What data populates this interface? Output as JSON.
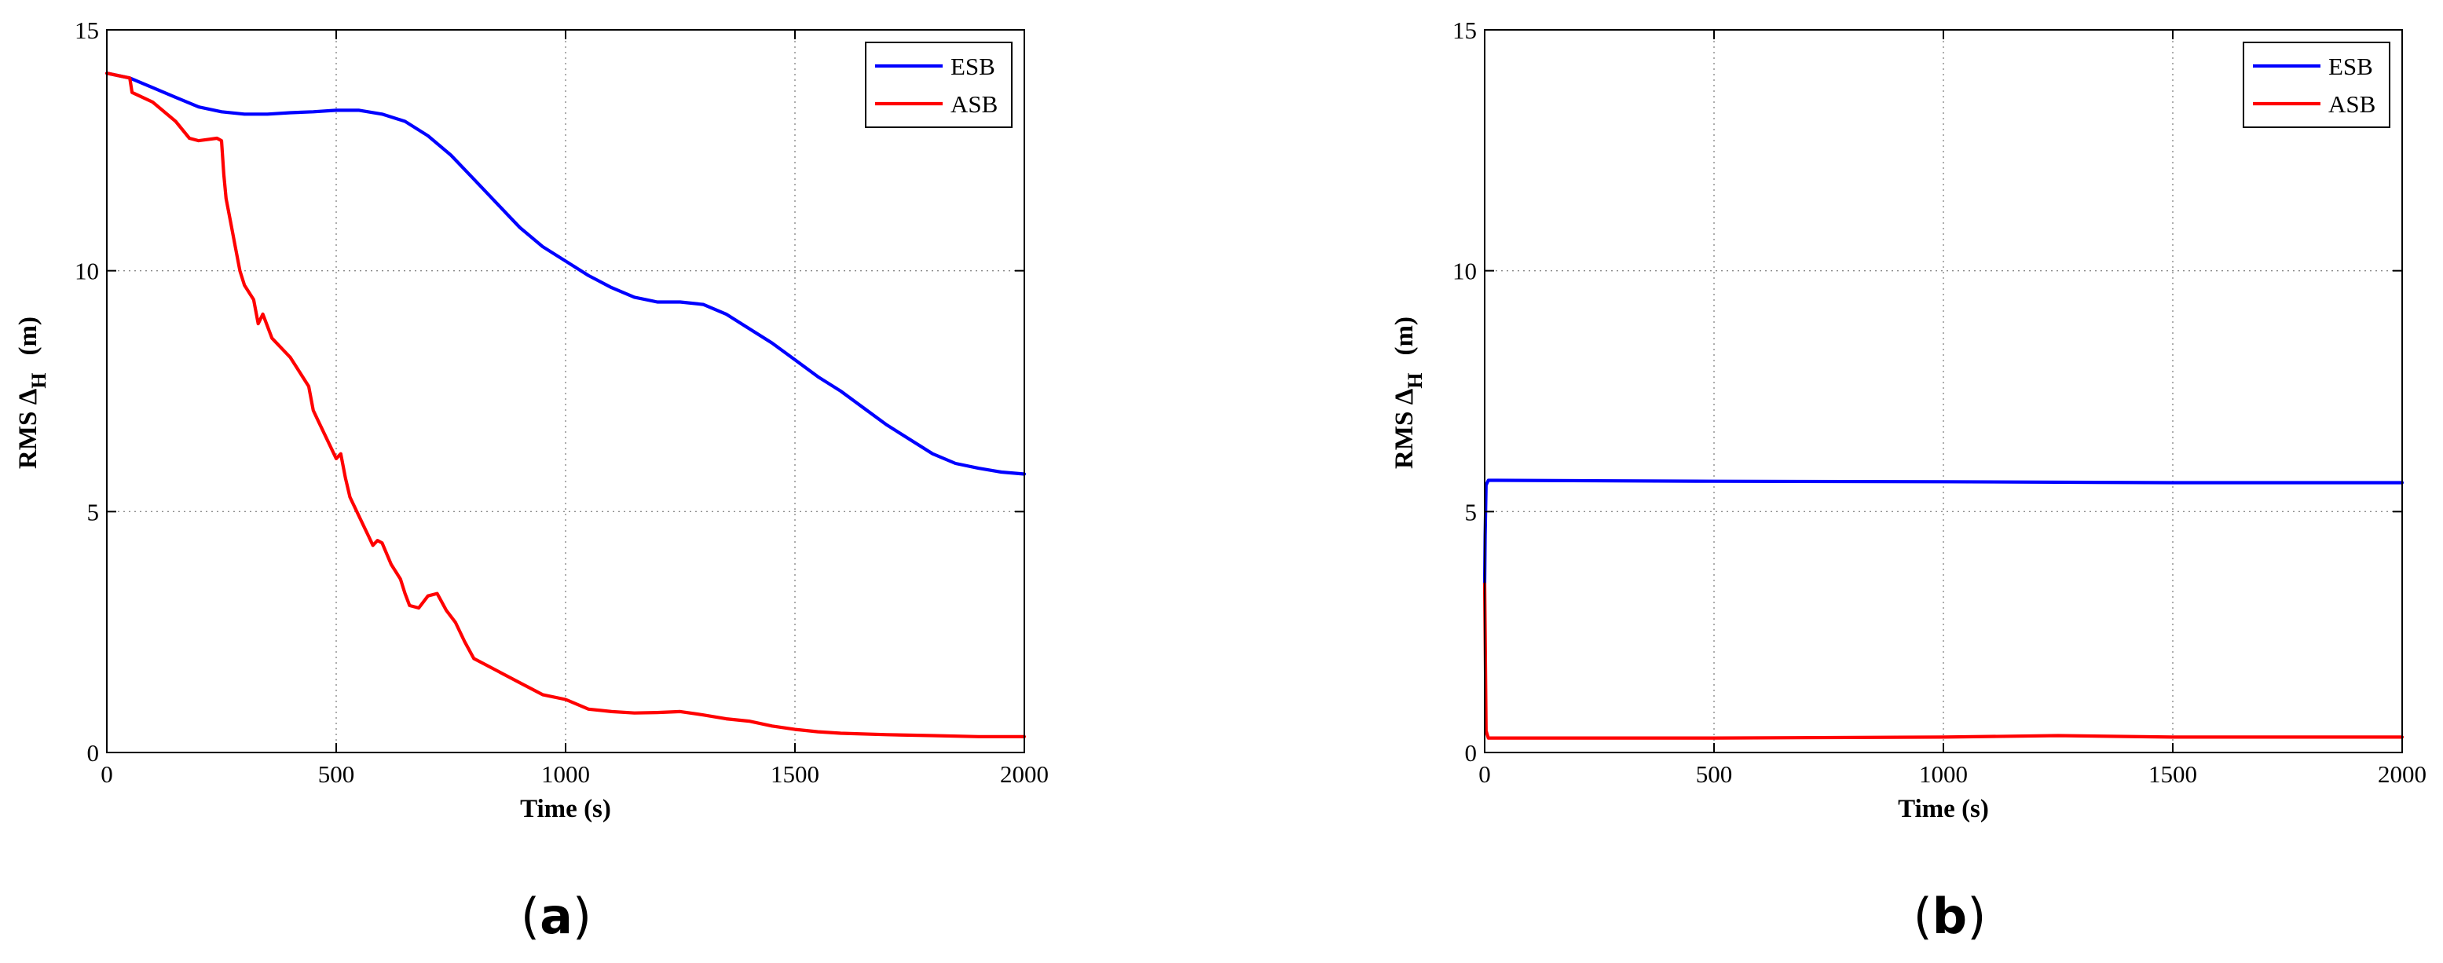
{
  "chart_data": [
    {
      "type": "line",
      "panel_label": "a",
      "xlabel": "Time  (s)",
      "ylabel": "RMS Δ",
      "ylabel_subscript": "H",
      "ylabel_unit": "(m)",
      "xlim": [
        0,
        2000
      ],
      "ylim": [
        0,
        15
      ],
      "xticks": [
        0,
        500,
        1000,
        1500,
        2000
      ],
      "yticks": [
        0,
        5,
        10,
        15
      ],
      "grid": true,
      "legend_position": "top-right",
      "series": [
        {
          "name": "ESB",
          "color": "#0000ff",
          "x": [
            0,
            50,
            100,
            150,
            200,
            250,
            300,
            350,
            400,
            450,
            500,
            550,
            600,
            650,
            700,
            750,
            800,
            850,
            900,
            950,
            1000,
            1050,
            1100,
            1150,
            1200,
            1250,
            1300,
            1350,
            1400,
            1450,
            1500,
            1550,
            1600,
            1650,
            1700,
            1750,
            1800,
            1850,
            1900,
            1950,
            2000
          ],
          "values": [
            14.1,
            14.0,
            13.8,
            13.6,
            13.4,
            13.3,
            13.25,
            13.25,
            13.28,
            13.3,
            13.33,
            13.33,
            13.25,
            13.1,
            12.8,
            12.4,
            11.9,
            11.4,
            10.9,
            10.5,
            10.2,
            9.9,
            9.65,
            9.45,
            9.35,
            9.35,
            9.3,
            9.1,
            8.8,
            8.5,
            8.15,
            7.8,
            7.5,
            7.15,
            6.8,
            6.5,
            6.2,
            6.0,
            5.9,
            5.82,
            5.78
          ]
        },
        {
          "name": "ASB",
          "color": "#ff0000",
          "x": [
            0,
            50,
            55,
            100,
            150,
            180,
            200,
            240,
            250,
            255,
            260,
            270,
            280,
            290,
            300,
            320,
            330,
            340,
            360,
            380,
            400,
            420,
            440,
            450,
            460,
            480,
            500,
            510,
            520,
            530,
            550,
            560,
            570,
            580,
            590,
            600,
            620,
            640,
            650,
            660,
            680,
            700,
            720,
            740,
            760,
            780,
            800,
            850,
            900,
            950,
            1000,
            1050,
            1100,
            1150,
            1200,
            1250,
            1300,
            1350,
            1400,
            1450,
            1500,
            1550,
            1600,
            1700,
            1800,
            1900,
            2000
          ],
          "values": [
            14.1,
            14.0,
            13.7,
            13.5,
            13.1,
            12.75,
            12.7,
            12.75,
            12.7,
            12.0,
            11.5,
            11.0,
            10.5,
            10.0,
            9.7,
            9.4,
            8.9,
            9.1,
            8.6,
            8.4,
            8.2,
            7.9,
            7.6,
            7.1,
            6.9,
            6.5,
            6.1,
            6.2,
            5.7,
            5.3,
            4.9,
            4.7,
            4.5,
            4.3,
            4.4,
            4.35,
            3.9,
            3.6,
            3.3,
            3.05,
            3.0,
            3.25,
            3.3,
            2.95,
            2.7,
            2.3,
            1.95,
            1.7,
            1.45,
            1.2,
            1.1,
            0.9,
            0.85,
            0.82,
            0.83,
            0.85,
            0.78,
            0.7,
            0.65,
            0.55,
            0.48,
            0.43,
            0.4,
            0.37,
            0.35,
            0.33,
            0.33
          ]
        }
      ]
    },
    {
      "type": "line",
      "panel_label": "b",
      "xlabel": "Time  (s)",
      "ylabel": "RMS Δ",
      "ylabel_subscript": "H",
      "ylabel_unit": "(m)",
      "xlim": [
        0,
        2000
      ],
      "ylim": [
        0,
        15
      ],
      "xticks": [
        0,
        500,
        1000,
        1500,
        2000
      ],
      "yticks": [
        0,
        5,
        10,
        15
      ],
      "grid": true,
      "legend_position": "top-right",
      "series": [
        {
          "name": "ESB",
          "color": "#0000ff",
          "x": [
            0,
            1,
            3,
            8,
            20,
            500,
            1000,
            1500,
            2000
          ],
          "values": [
            3.5,
            4.5,
            5.55,
            5.65,
            5.65,
            5.63,
            5.62,
            5.6,
            5.6
          ]
        },
        {
          "name": "ASB",
          "color": "#ff0000",
          "x": [
            0,
            1,
            3,
            8,
            20,
            500,
            1000,
            1250,
            1500,
            2000
          ],
          "values": [
            3.5,
            2.5,
            0.45,
            0.3,
            0.3,
            0.3,
            0.32,
            0.35,
            0.32,
            0.32
          ]
        }
      ]
    }
  ]
}
